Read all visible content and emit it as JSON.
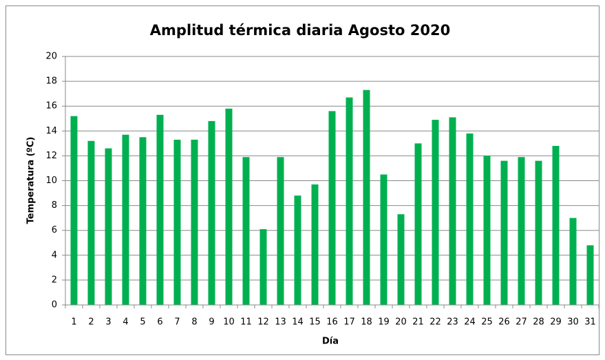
{
  "chart_data": {
    "type": "bar",
    "title": "Amplitud térmica diaria Agosto 2020",
    "x_label": "Día",
    "y_label": "Temperatura (ºC)",
    "categories": [
      "1",
      "2",
      "3",
      "4",
      "5",
      "6",
      "7",
      "8",
      "9",
      "10",
      "11",
      "12",
      "13",
      "14",
      "15",
      "16",
      "17",
      "18",
      "19",
      "20",
      "21",
      "22",
      "23",
      "24",
      "25",
      "26",
      "27",
      "28",
      "29",
      "30",
      "31"
    ],
    "values": [
      15.2,
      13.2,
      12.6,
      13.7,
      13.5,
      15.3,
      13.3,
      13.3,
      14.8,
      15.8,
      11.9,
      6.1,
      11.9,
      8.8,
      9.7,
      15.6,
      16.7,
      17.3,
      10.5,
      7.3,
      13.0,
      14.9,
      15.1,
      13.8,
      12.0,
      11.6,
      11.9,
      11.6,
      12.8,
      7.0,
      4.8
    ],
    "color": "#00b050",
    "ylim": [
      0,
      20
    ],
    "yticks": [
      0,
      2,
      4,
      6,
      8,
      10,
      12,
      14,
      16,
      18,
      20
    ],
    "grid": true
  }
}
